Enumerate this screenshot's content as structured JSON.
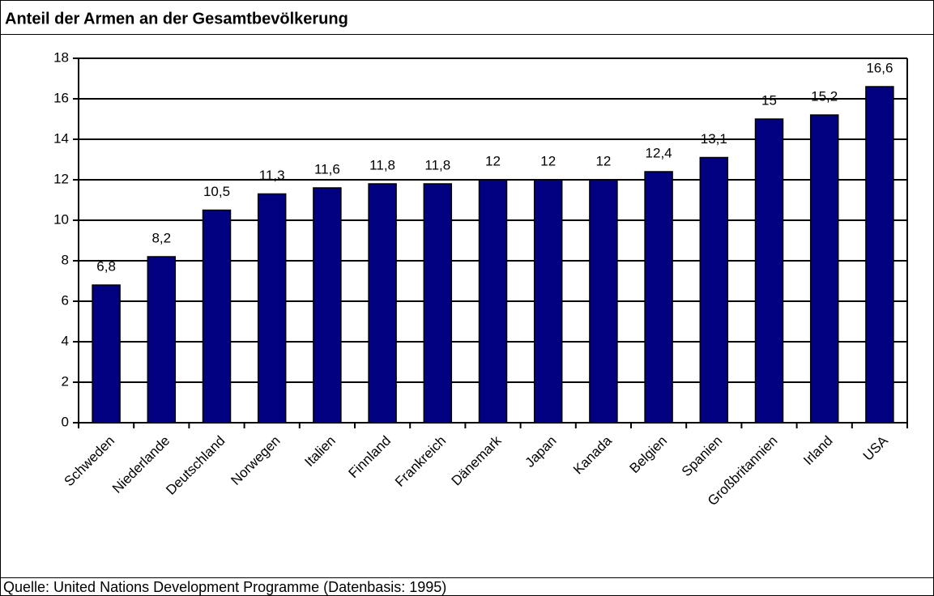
{
  "chart_data": {
    "type": "bar",
    "title": "Anteil der Armen an der Gesamtbevölkerung",
    "source": "Quelle: United Nations Development Programme (Datenbasis: 1995)",
    "categories": [
      "Schweden",
      "Niederlande",
      "Deutschland",
      "Norwegen",
      "Italien",
      "Finnland",
      "Frankreich",
      "Dänemark",
      "Japan",
      "Kanada",
      "Belgien",
      "Spanien",
      "Großbritannien",
      "Irland",
      "USA"
    ],
    "values": [
      6.8,
      8.2,
      10.5,
      11.3,
      11.6,
      11.8,
      11.8,
      12,
      12,
      12,
      12.4,
      13.1,
      15,
      15.2,
      16.6
    ],
    "value_labels": [
      "6,8",
      "8,2",
      "10,5",
      "11,3",
      "11,6",
      "11,8",
      "11,8",
      "12",
      "12",
      "12",
      "12,4",
      "13,1",
      "15",
      "15,2",
      "16,6"
    ],
    "color": "#000080",
    "ylim": [
      0,
      18
    ],
    "yticks": [
      0,
      2,
      4,
      6,
      8,
      10,
      12,
      14,
      16,
      18
    ],
    "grid": true
  }
}
